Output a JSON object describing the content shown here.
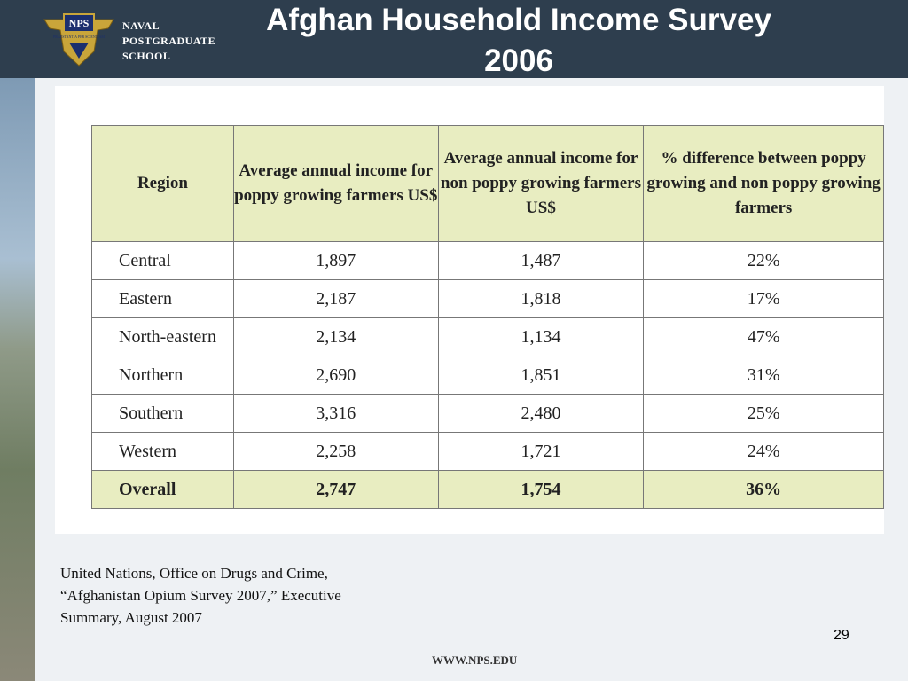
{
  "header": {
    "logo": {
      "badge": "NPS",
      "motto": "PRAESTANTIA PER SCIENTIAM",
      "lines": [
        "NAVAL",
        "POSTGRADUATE",
        "SCHOOL"
      ]
    },
    "title": [
      "Afghan Household Income Survey",
      "2006"
    ]
  },
  "table": {
    "columns": [
      "Region",
      "Average annual income for poppy growing farmers US$",
      "Average annual income for non poppy growing farmers US$",
      "% difference between poppy growing and non poppy growing farmers"
    ],
    "rows": [
      [
        "Central",
        "1,897",
        "1,487",
        "22%"
      ],
      [
        "Eastern",
        "2,187",
        "1,818",
        "17%"
      ],
      [
        "North-eastern",
        "2,134",
        "1,134",
        "47%"
      ],
      [
        "Northern",
        "2,690",
        "1,851",
        "31%"
      ],
      [
        "Southern",
        "3,316",
        "2,480",
        "25%"
      ],
      [
        "Western",
        "2,258",
        "1,721",
        "24%"
      ],
      [
        "Overall",
        "2,747",
        "1,754",
        "36%"
      ]
    ]
  },
  "source": [
    "United Nations, Office on Drugs and Crime,",
    "“Afghanistan Opium Survey 2007,” Executive",
    "Summary, August 2007"
  ],
  "page_number": "29",
  "footer": "WWW.NPS.EDU"
}
